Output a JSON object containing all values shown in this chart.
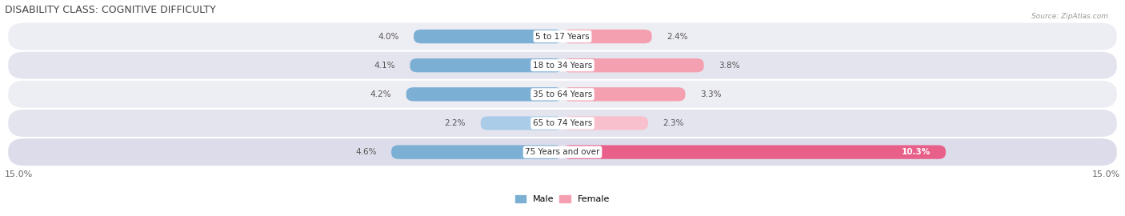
{
  "title": "DISABILITY CLASS: COGNITIVE DIFFICULTY",
  "source": "Source: ZipAtlas.com",
  "categories": [
    "5 to 17 Years",
    "18 to 34 Years",
    "35 to 64 Years",
    "65 to 74 Years",
    "75 Years and over"
  ],
  "male_values": [
    4.0,
    4.1,
    4.2,
    2.2,
    4.6
  ],
  "female_values": [
    2.4,
    3.8,
    3.3,
    2.3,
    10.3
  ],
  "male_color_normal": "#7bafd4",
  "male_color_light": "#aacce8",
  "female_color_normal": "#f4a0b0",
  "female_color_light": "#f8c0cc",
  "female_color_strong": "#e8608a",
  "x_max": 15.0,
  "x_min": -15.0,
  "bar_height": 0.48,
  "bg_color": "#ffffff",
  "row_colors": [
    "#f0f0f5",
    "#e8e8f2",
    "#f0f0f5",
    "#e8e8f2",
    "#e0e0ec"
  ],
  "title_fontsize": 9,
  "label_fontsize": 7.5,
  "source_fontsize": 6.5,
  "tick_fontsize": 8
}
